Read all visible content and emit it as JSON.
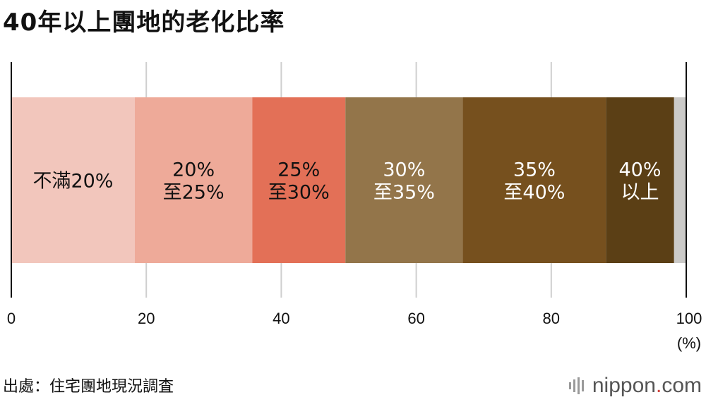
{
  "title": "40年以上團地的老化比率",
  "source": "出處：住宅團地現況調査",
  "brand": {
    "prefix": "nippon",
    "dot": ".",
    "suffix": "com",
    "logo_icon": "nippon-logo-mark-icon"
  },
  "chart_data": {
    "type": "bar",
    "orientation": "horizontal-stacked",
    "xlim": [
      0,
      100
    ],
    "x_ticks": [
      "0",
      "20",
      "40",
      "60",
      "80",
      "100"
    ],
    "unit": "(%)",
    "grid": true,
    "segments": [
      {
        "label": [
          "不滿20%"
        ],
        "value": 18.3,
        "color": "#f2c6bc",
        "text_color": "#111111"
      },
      {
        "label": [
          "20%",
          "至25%"
        ],
        "value": 17.4,
        "color": "#eeaa99",
        "text_color": "#111111"
      },
      {
        "label": [
          "25%",
          "至30%"
        ],
        "value": 13.8,
        "color": "#e37057",
        "text_color": "#111111"
      },
      {
        "label": [
          "30%",
          "至35%"
        ],
        "value": 17.4,
        "color": "#93754a",
        "text_color": "#ffffff"
      },
      {
        "label": [
          "35%",
          "至40%"
        ],
        "value": 21.2,
        "color": "#76501e",
        "text_color": "#ffffff"
      },
      {
        "label": [
          "40%",
          "以上"
        ],
        "value": 10.1,
        "color": "#5b3f15",
        "text_color": "#ffffff"
      },
      {
        "label": [],
        "value": 1.8,
        "color": "#cbcac8",
        "text_color": "#111111"
      }
    ]
  }
}
